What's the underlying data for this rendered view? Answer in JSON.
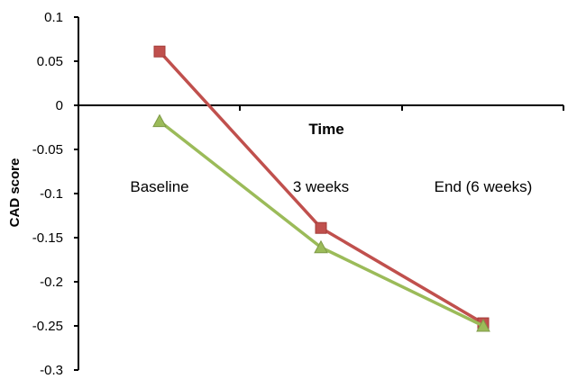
{
  "chart_data": {
    "type": "line",
    "categories": [
      "Baseline",
      "3 weeks",
      "End (6 weeks)"
    ],
    "series": [
      {
        "values": [
          0.061,
          -0.139,
          -0.247
        ],
        "color": "#c0504d",
        "marker": "square"
      },
      {
        "values": [
          -0.018,
          -0.161,
          -0.25
        ],
        "color": "#9bbb59",
        "marker": "triangle"
      }
    ],
    "xlabel": "Time",
    "ylabel": "CAD score",
    "ylim": [
      -0.3,
      0.1
    ],
    "yticks": [
      "0.1",
      "0.05",
      "0",
      "-0.05",
      "-0.1",
      "-0.15",
      "-0.2",
      "-0.25",
      "-0.3"
    ],
    "ytick_values": [
      0.1,
      0.05,
      0,
      -0.05,
      -0.1,
      -0.15,
      -0.2,
      -0.25,
      -0.3
    ],
    "grid": false,
    "legend": "none"
  }
}
